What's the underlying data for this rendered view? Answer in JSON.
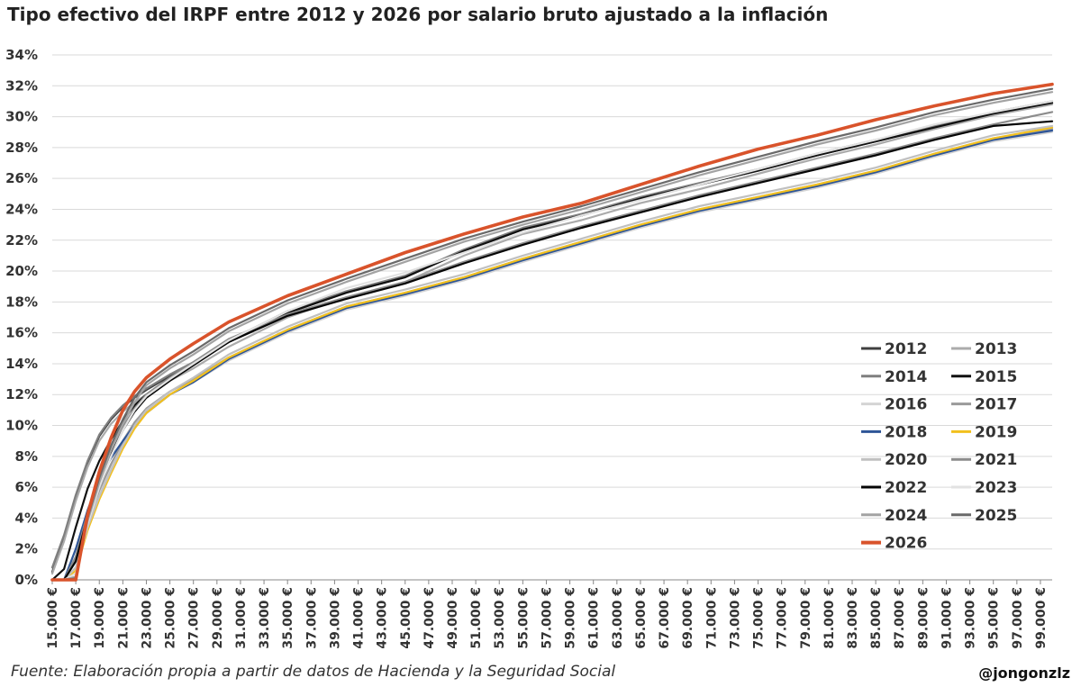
{
  "title": "Tipo efectivo del IRPF entre 2012 y 2026 por salario bruto ajustado a la inflación",
  "source": "Fuente: Elaboración propia a partir de datos de Hacienda y la Seguridad Social",
  "handle": "@jongonzlz",
  "chart_data": {
    "type": "line",
    "title": "Tipo efectivo del IRPF entre 2012 y 2026 por salario bruto ajustado a la inflación",
    "xlabel": "",
    "ylabel": "",
    "x_range": [
      15000,
      100000
    ],
    "ylim": [
      0,
      34
    ],
    "y_ticks": [
      0,
      2,
      4,
      6,
      8,
      10,
      12,
      14,
      16,
      18,
      20,
      22,
      24,
      26,
      28,
      30,
      32,
      34
    ],
    "y_tick_labels": [
      "0%",
      "2%",
      "4%",
      "6%",
      "8%",
      "10%",
      "12%",
      "14%",
      "16%",
      "18%",
      "20%",
      "22%",
      "24%",
      "26%",
      "28%",
      "30%",
      "32%",
      "34%"
    ],
    "x_tick_labels": [
      "15.000 €",
      "17.000 €",
      "19.000 €",
      "21.000 €",
      "23.000 €",
      "25.000 €",
      "27.000 €",
      "29.000 €",
      "31.000 €",
      "33.000 €",
      "35.000 €",
      "37.000 €",
      "39.000 €",
      "41.000 €",
      "43.000 €",
      "45.000 €",
      "47.000 €",
      "49.000 €",
      "51.000 €",
      "53.000 €",
      "55.000 €",
      "57.000 €",
      "59.000 €",
      "61.000 €",
      "63.000 €",
      "65.000 €",
      "67.000 €",
      "69.000 €",
      "71.000 €",
      "73.000 €",
      "75.000 €",
      "77.000 €",
      "79.000 €",
      "81.000 €",
      "83.000 €",
      "85.000 €",
      "87.000 €",
      "89.000 €",
      "91.000 €",
      "93.000 €",
      "95.000 €",
      "97.000 €",
      "99.000 €"
    ],
    "grid": true,
    "legend_position": "bottom-right",
    "x": [
      15000,
      16000,
      17000,
      18000,
      19000,
      20000,
      21000,
      22000,
      23000,
      25000,
      27000,
      30000,
      35000,
      40000,
      45000,
      50000,
      55000,
      60000,
      65000,
      70000,
      75000,
      80000,
      85000,
      90000,
      95000,
      100000
    ],
    "series": [
      {
        "name": "2012",
        "color": "#404040",
        "width": 2.2,
        "values": [
          0.5,
          2.8,
          5.4,
          7.6,
          9.3,
          10.4,
          11.2,
          11.8,
          12.3,
          13.2,
          14.0,
          15.4,
          17.3,
          18.6,
          19.6,
          21.3,
          22.7,
          23.6,
          24.7,
          25.6,
          26.5,
          27.5,
          28.4,
          29.3,
          30.2,
          30.9
        ]
      },
      {
        "name": "2013",
        "color": "#ababab",
        "width": 2.2,
        "values": [
          0.4,
          2.5,
          5.1,
          7.3,
          9.0,
          10.1,
          10.9,
          11.5,
          12.0,
          12.9,
          13.7,
          15.1,
          17.0,
          18.3,
          19.3,
          21.0,
          22.4,
          23.3,
          24.4,
          25.3,
          26.3,
          27.3,
          28.2,
          29.2,
          30.1,
          30.8
        ]
      },
      {
        "name": "2014",
        "color": "#7f7f7f",
        "width": 2.2,
        "values": [
          0.8,
          2.9,
          5.5,
          7.7,
          9.4,
          10.5,
          11.3,
          11.9,
          12.4,
          13.3,
          14.1,
          15.5,
          17.4,
          18.7,
          19.7,
          21.4,
          22.8,
          23.7,
          24.8,
          25.7,
          26.6,
          27.6,
          28.5,
          29.4,
          30.3,
          31.0
        ]
      },
      {
        "name": "2015",
        "color": "#111111",
        "width": 2.2,
        "values": [
          0.0,
          0.7,
          3.4,
          5.9,
          7.7,
          9.1,
          10.3,
          11.3,
          12.0,
          13.1,
          14.0,
          15.4,
          17.3,
          18.6,
          19.6,
          21.3,
          22.7,
          23.6,
          24.7,
          25.6,
          26.5,
          27.5,
          28.4,
          29.3,
          30.2,
          30.9
        ]
      },
      {
        "name": "2016",
        "color": "#d4d4d4",
        "width": 2.2,
        "values": [
          0.0,
          0.0,
          1.2,
          3.6,
          5.6,
          7.3,
          8.8,
          10.0,
          10.9,
          12.0,
          12.8,
          14.2,
          16.0,
          17.5,
          18.4,
          19.4,
          20.6,
          21.7,
          22.8,
          23.8,
          24.6,
          25.4,
          26.3,
          27.4,
          28.4,
          29.0
        ]
      },
      {
        "name": "2017",
        "color": "#9a9a9a",
        "width": 2.2,
        "values": [
          0.0,
          0.0,
          1.4,
          3.8,
          5.8,
          7.5,
          9.0,
          10.2,
          11.1,
          12.2,
          13.0,
          14.4,
          16.2,
          17.7,
          18.6,
          19.6,
          20.8,
          21.9,
          23.0,
          24.0,
          24.8,
          25.6,
          26.5,
          27.6,
          28.6,
          29.2
        ]
      },
      {
        "name": "2018",
        "color": "#2e5597",
        "width": 2.2,
        "values": [
          0.0,
          0.0,
          2.0,
          4.5,
          6.5,
          7.9,
          9.0,
          10.0,
          10.8,
          12.0,
          12.8,
          14.3,
          16.1,
          17.6,
          18.5,
          19.5,
          20.7,
          21.8,
          22.9,
          23.9,
          24.7,
          25.5,
          26.4,
          27.5,
          28.5,
          29.1
        ]
      },
      {
        "name": "2019",
        "color": "#f2c01e",
        "width": 2.2,
        "values": [
          0.0,
          0.0,
          0.6,
          3.2,
          5.2,
          6.9,
          8.5,
          9.8,
          10.8,
          12.0,
          12.9,
          14.4,
          16.2,
          17.7,
          18.6,
          19.6,
          20.8,
          21.9,
          23.0,
          24.0,
          24.8,
          25.6,
          26.5,
          27.6,
          28.6,
          29.3
        ]
      },
      {
        "name": "2020",
        "color": "#c0c0c0",
        "width": 2.2,
        "values": [
          0.0,
          0.0,
          0.8,
          3.4,
          5.4,
          7.1,
          8.7,
          10.0,
          11.0,
          12.2,
          13.1,
          14.6,
          16.4,
          17.9,
          18.8,
          19.8,
          21.0,
          22.1,
          23.2,
          24.2,
          25.0,
          25.8,
          26.7,
          27.8,
          28.8,
          29.4
        ]
      },
      {
        "name": "2021",
        "color": "#8c8c8c",
        "width": 2.2,
        "values": [
          0.0,
          0.0,
          1.5,
          4.3,
          6.4,
          8.3,
          9.9,
          11.1,
          12.0,
          13.1,
          14.1,
          15.6,
          17.2,
          18.3,
          19.3,
          20.6,
          21.8,
          22.9,
          23.9,
          24.9,
          25.8,
          26.7,
          27.6,
          28.6,
          29.5,
          30.3
        ]
      },
      {
        "name": "2022",
        "color": "#050505",
        "width": 2.2,
        "values": [
          0.0,
          0.0,
          1.2,
          4.1,
          6.2,
          8.1,
          9.7,
          10.9,
          11.8,
          12.9,
          13.9,
          15.4,
          17.1,
          18.2,
          19.2,
          20.5,
          21.7,
          22.8,
          23.8,
          24.8,
          25.7,
          26.6,
          27.5,
          28.5,
          29.4,
          29.7
        ]
      },
      {
        "name": "2023",
        "color": "#e2e2e2",
        "width": 2.2,
        "values": [
          0.0,
          0.0,
          0.4,
          3.6,
          6.0,
          8.0,
          9.7,
          11.0,
          11.9,
          13.0,
          14.0,
          15.5,
          17.4,
          18.9,
          19.9,
          21.2,
          22.5,
          23.6,
          24.6,
          25.6,
          26.6,
          27.6,
          28.5,
          29.5,
          30.3,
          31.0
        ]
      },
      {
        "name": "2024",
        "color": "#a3a3a3",
        "width": 2.2,
        "values": [
          0.0,
          0.0,
          0.2,
          3.8,
          6.3,
          8.4,
          10.1,
          11.5,
          12.6,
          13.7,
          14.6,
          16.1,
          17.9,
          19.3,
          20.6,
          21.9,
          23.0,
          24.0,
          25.1,
          26.2,
          27.2,
          28.2,
          29.1,
          30.1,
          30.9,
          31.6
        ]
      },
      {
        "name": "2025",
        "color": "#6a6a6a",
        "width": 2.2,
        "values": [
          0.0,
          0.0,
          0.1,
          4.0,
          6.6,
          8.7,
          10.4,
          11.8,
          12.8,
          13.9,
          14.8,
          16.3,
          18.1,
          19.5,
          20.8,
          22.1,
          23.2,
          24.2,
          25.3,
          26.4,
          27.4,
          28.4,
          29.3,
          30.3,
          31.1,
          31.8
        ]
      },
      {
        "name": "2026",
        "color": "#d9532b",
        "width": 3.6,
        "values": [
          0.0,
          0.0,
          0.0,
          4.2,
          7.0,
          9.2,
          11.0,
          12.2,
          13.1,
          14.3,
          15.3,
          16.7,
          18.4,
          19.8,
          21.2,
          22.4,
          23.5,
          24.4,
          25.6,
          26.8,
          27.9,
          28.8,
          29.8,
          30.7,
          31.5,
          32.1
        ]
      }
    ]
  }
}
